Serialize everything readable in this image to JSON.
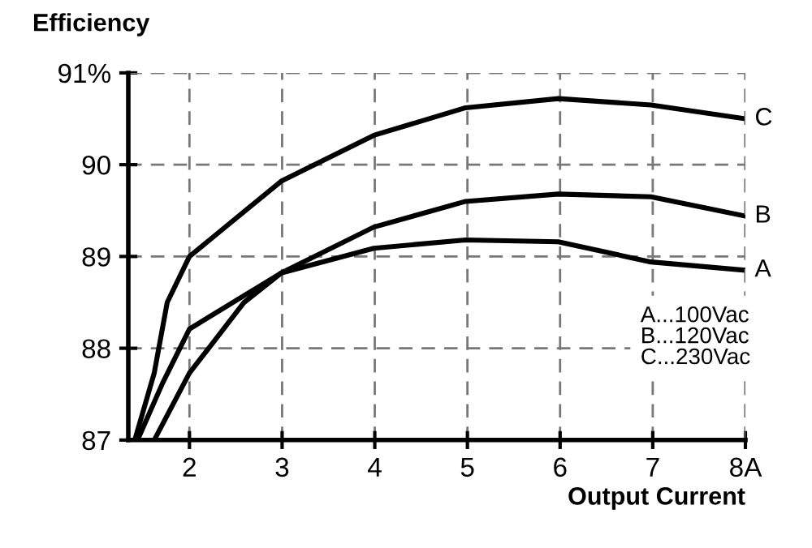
{
  "chart_data": {
    "type": "line",
    "xlabel": "Output Current",
    "ylabel": "Efficiency",
    "xlim": [
      1.34,
      8
    ],
    "ylim": [
      87,
      91
    ],
    "xticks": [
      2,
      3,
      4,
      5,
      6,
      7,
      {
        "value": 8,
        "label": "8A"
      }
    ],
    "yticks": [
      87,
      88,
      89,
      90,
      {
        "value": 91,
        "label": "91%"
      }
    ],
    "grid": true,
    "line_style": "solid",
    "marker": "none",
    "annotations": [
      "A...100Vac",
      "B...120Vac",
      "C...230Vac"
    ],
    "series": [
      {
        "name": "A",
        "color": "#000000",
        "x": [
          1.44,
          1.71,
          2,
          2.99,
          3.99,
          4.98,
          5.98,
          6.98,
          8
        ],
        "values": [
          87,
          87.62,
          88.21,
          88.82,
          89.09,
          89.18,
          89.16,
          88.94,
          88.85
        ]
      },
      {
        "name": "B",
        "color": "#000000",
        "x": [
          1.62,
          2,
          2.59,
          2.99,
          3.99,
          4.98,
          5.98,
          6.98,
          8
        ],
        "values": [
          87,
          87.73,
          88.5,
          88.82,
          89.32,
          89.6,
          89.68,
          89.65,
          89.44
        ]
      },
      {
        "name": "C",
        "color": "#000000",
        "x": [
          1.41,
          1.62,
          1.76,
          2,
          2.99,
          3.99,
          4.98,
          5.98,
          6.98,
          8
        ],
        "values": [
          87,
          87.73,
          88.5,
          89.0,
          89.82,
          90.32,
          90.62,
          90.72,
          90.65,
          90.5
        ]
      }
    ]
  }
}
